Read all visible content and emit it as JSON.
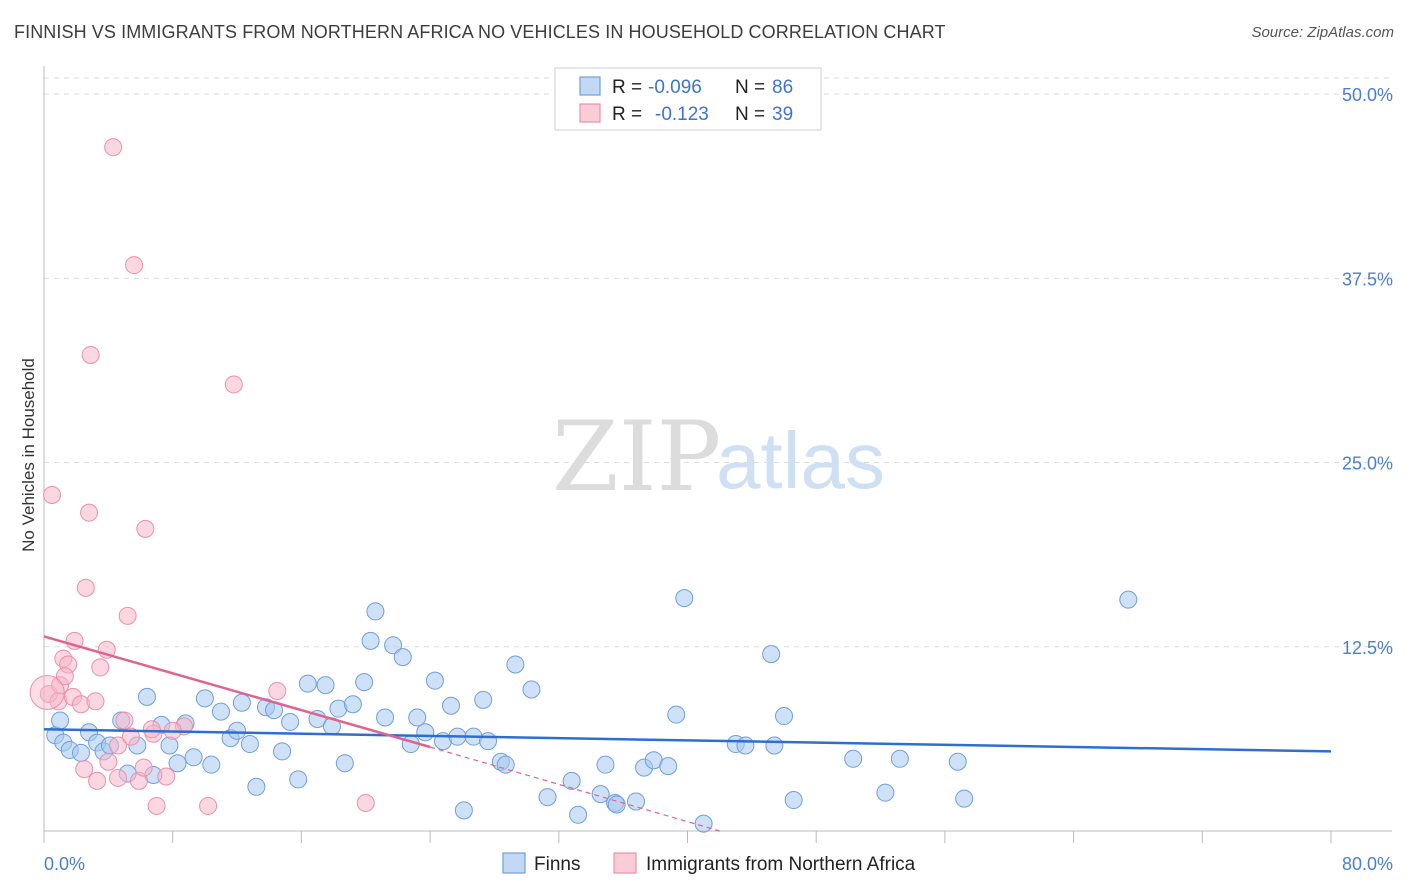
{
  "title": "FINNISH VS IMMIGRANTS FROM NORTHERN AFRICA NO VEHICLES IN HOUSEHOLD CORRELATION CHART",
  "source": "Source: ZipAtlas.com",
  "watermark": {
    "zip": "ZIP",
    "atlas": "atlas"
  },
  "legend_top": [
    {
      "r_label": "R =",
      "r_value": "-0.096",
      "n_label": "N =",
      "n_value": "86",
      "color": "#a8c8f0"
    },
    {
      "r_label": "R =",
      "r_value": "-0.123",
      "n_label": "N =",
      "n_value": "39",
      "color": "#f7b6c8"
    }
  ],
  "chart_data": {
    "type": "scatter",
    "ylabel": "No Vehicles in Household",
    "xlim": [
      0,
      80
    ],
    "ylim": [
      0,
      51.5
    ],
    "x_tick_labels": [
      "0.0%",
      "80.0%"
    ],
    "y_ticks": [
      12.5,
      25.0,
      37.5,
      50.0
    ],
    "y_tick_labels": [
      "12.5%",
      "25.0%",
      "37.5%",
      "50.0%"
    ],
    "series": [
      {
        "name": "Finns",
        "color": "#a8c8f0",
        "stroke": "#6f9fdc",
        "trend": {
          "x0": 0,
          "y0": 6.9,
          "x1": 80,
          "y1": 5.4,
          "color": "#2c6fd1",
          "dashed_to": null
        },
        "points": [
          [
            0.7,
            6.5
          ],
          [
            1.0,
            7.5
          ],
          [
            1.2,
            6.0
          ],
          [
            1.6,
            5.5
          ],
          [
            2.3,
            5.3
          ],
          [
            2.8,
            6.7
          ],
          [
            3.3,
            6.0
          ],
          [
            3.7,
            5.4
          ],
          [
            4.1,
            5.8
          ],
          [
            4.8,
            7.5
          ],
          [
            5.2,
            3.9
          ],
          [
            5.8,
            5.8
          ],
          [
            6.4,
            9.1
          ],
          [
            6.8,
            3.8
          ],
          [
            7.3,
            7.2
          ],
          [
            7.8,
            5.8
          ],
          [
            8.3,
            4.6
          ],
          [
            8.8,
            7.3
          ],
          [
            9.3,
            5.0
          ],
          [
            10.0,
            9.0
          ],
          [
            10.4,
            4.5
          ],
          [
            11.0,
            8.1
          ],
          [
            11.6,
            6.3
          ],
          [
            12.0,
            6.8
          ],
          [
            12.3,
            8.7
          ],
          [
            12.8,
            5.9
          ],
          [
            13.2,
            3.0
          ],
          [
            13.8,
            8.4
          ],
          [
            14.3,
            8.2
          ],
          [
            14.8,
            5.4
          ],
          [
            15.3,
            7.4
          ],
          [
            15.8,
            3.5
          ],
          [
            16.4,
            10.0
          ],
          [
            17.0,
            7.6
          ],
          [
            17.5,
            9.9
          ],
          [
            17.9,
            7.1
          ],
          [
            18.3,
            8.3
          ],
          [
            18.7,
            4.6
          ],
          [
            19.2,
            8.6
          ],
          [
            19.9,
            10.1
          ],
          [
            20.3,
            12.9
          ],
          [
            20.6,
            14.9
          ],
          [
            21.2,
            7.7
          ],
          [
            21.7,
            12.6
          ],
          [
            22.3,
            11.8
          ],
          [
            22.8,
            5.9
          ],
          [
            23.2,
            7.7
          ],
          [
            23.7,
            6.7
          ],
          [
            24.3,
            10.2
          ],
          [
            24.8,
            6.1
          ],
          [
            25.3,
            8.5
          ],
          [
            25.7,
            6.4
          ],
          [
            26.1,
            1.4
          ],
          [
            26.7,
            6.4
          ],
          [
            27.3,
            8.9
          ],
          [
            27.6,
            6.1
          ],
          [
            28.4,
            4.7
          ],
          [
            28.7,
            4.5
          ],
          [
            29.3,
            11.3
          ],
          [
            30.3,
            9.6
          ],
          [
            31.3,
            2.3
          ],
          [
            32.8,
            3.4
          ],
          [
            33.2,
            1.1
          ],
          [
            34.6,
            2.5
          ],
          [
            34.9,
            4.5
          ],
          [
            35.5,
            1.9
          ],
          [
            35.6,
            1.8
          ],
          [
            36.8,
            2.0
          ],
          [
            37.3,
            4.3
          ],
          [
            37.9,
            4.8
          ],
          [
            38.8,
            4.4
          ],
          [
            39.3,
            7.9
          ],
          [
            39.8,
            15.8
          ],
          [
            41.0,
            0.5
          ],
          [
            43.0,
            5.9
          ],
          [
            43.6,
            5.8
          ],
          [
            45.2,
            12.0
          ],
          [
            45.4,
            5.8
          ],
          [
            46.0,
            7.8
          ],
          [
            46.6,
            2.1
          ],
          [
            50.3,
            4.9
          ],
          [
            52.3,
            2.6
          ],
          [
            53.2,
            4.9
          ],
          [
            56.8,
            4.7
          ],
          [
            57.2,
            2.2
          ],
          [
            67.4,
            15.7
          ]
        ]
      },
      {
        "name": "Immigrants from Northern Africa",
        "color": "#f7b6c8",
        "stroke": "#ec8fab",
        "trend": {
          "x0": 0,
          "y0": 13.2,
          "x1": 24,
          "y1": 5.7,
          "color": "#e0638f",
          "dash_x1": 42,
          "dash_y1": 0
        },
        "points": [
          [
            0.3,
            9.3
          ],
          [
            0.5,
            22.8
          ],
          [
            0.9,
            8.8
          ],
          [
            1.0,
            9.9
          ],
          [
            1.2,
            11.7
          ],
          [
            1.5,
            11.3
          ],
          [
            1.8,
            9.1
          ],
          [
            1.9,
            12.9
          ],
          [
            2.3,
            8.6
          ],
          [
            2.5,
            4.2
          ],
          [
            2.6,
            16.5
          ],
          [
            2.8,
            21.6
          ],
          [
            2.9,
            32.3
          ],
          [
            3.2,
            8.8
          ],
          [
            3.3,
            3.4
          ],
          [
            3.5,
            11.1
          ],
          [
            3.9,
            12.3
          ],
          [
            4.0,
            4.7
          ],
          [
            4.3,
            46.4
          ],
          [
            4.6,
            3.6
          ],
          [
            5.0,
            7.5
          ],
          [
            5.2,
            14.6
          ],
          [
            5.4,
            6.4
          ],
          [
            5.6,
            38.4
          ],
          [
            5.9,
            3.4
          ],
          [
            6.2,
            4.3
          ],
          [
            6.3,
            20.5
          ],
          [
            6.8,
            6.6
          ],
          [
            7.0,
            1.7
          ],
          [
            7.6,
            3.7
          ],
          [
            8.7,
            7.1
          ],
          [
            10.2,
            1.7
          ],
          [
            11.8,
            30.3
          ],
          [
            14.5,
            9.5
          ],
          [
            20.0,
            1.9
          ],
          [
            8.0,
            6.8
          ],
          [
            1.3,
            10.5
          ],
          [
            4.6,
            5.8
          ],
          [
            6.7,
            6.9
          ]
        ]
      }
    ]
  },
  "bottom_legend": [
    {
      "label": "Finns",
      "color": "#a8c8f0"
    },
    {
      "label": "Immigrants from Northern Africa",
      "color": "#f7b6c8"
    }
  ]
}
